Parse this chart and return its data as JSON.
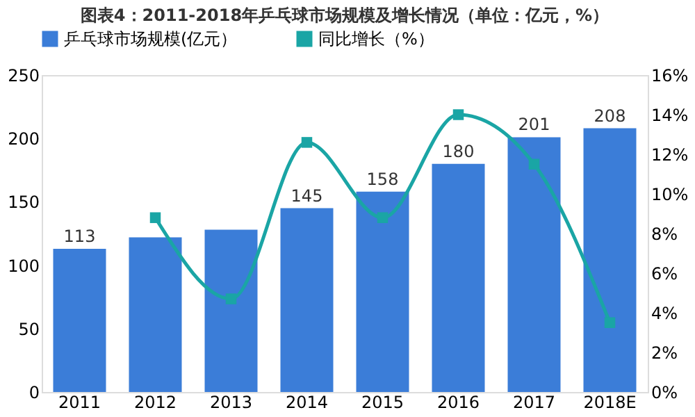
{
  "chart_data": {
    "type": "bar",
    "title": "图表4：2011-2018年乒乓球市场规模及增长情况（单位：亿元，%）",
    "categories": [
      "2011",
      "2012",
      "2013",
      "2014",
      "2015",
      "2016",
      "2017",
      "2018E"
    ],
    "series": [
      {
        "name": "乒乓球市场规模(亿元）",
        "color": "#3b7dd8",
        "values": [
          113,
          122,
          128,
          145,
          158,
          180,
          201,
          208
        ],
        "value_labels": [
          "113",
          null,
          null,
          "145",
          "158",
          "180",
          "201",
          "208"
        ]
      },
      {
        "name": "同比增长（%）",
        "type": "line",
        "axis": "y2",
        "color": "#1aa5a5",
        "marker": "square",
        "values": [
          null,
          8.8,
          4.7,
          12.6,
          8.8,
          14.0,
          11.5,
          3.5
        ]
      }
    ],
    "ylim": [
      0,
      250
    ],
    "yticks": [
      0,
      50,
      100,
      150,
      200,
      250
    ],
    "y2lim": [
      0,
      16
    ],
    "y2ticks": [
      {
        "value": 0,
        "label": "0%"
      },
      {
        "value": 2,
        "label": "2%"
      },
      {
        "value": 4,
        "label": "4%"
      },
      {
        "value": 6,
        "label": "6%"
      },
      {
        "value": 8,
        "label": "8%"
      },
      {
        "value": 10,
        "label": "10%"
      },
      {
        "value": 12,
        "label": "12%"
      },
      {
        "value": 14,
        "label": "14%"
      },
      {
        "value": 16,
        "label": "16%"
      }
    ],
    "legend": "top",
    "grid": false
  }
}
